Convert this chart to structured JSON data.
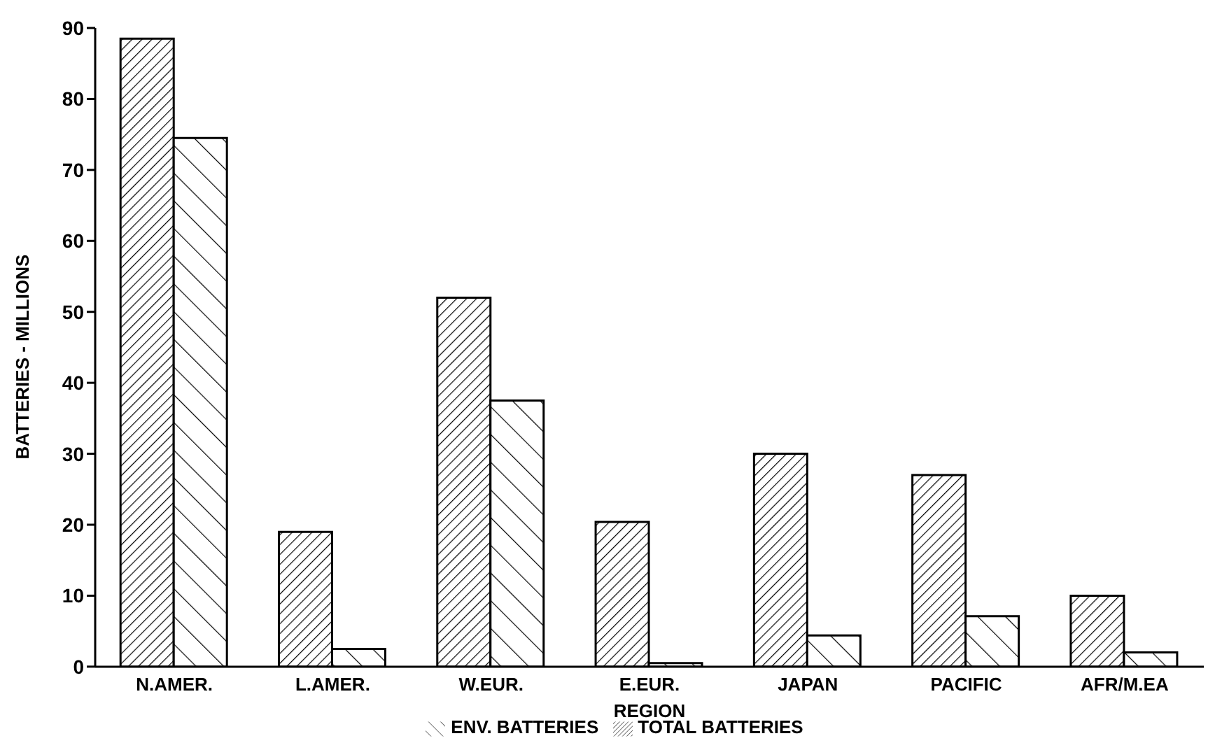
{
  "chart_data": {
    "type": "bar",
    "xlabel": "REGION",
    "ylabel": "BATTERIES - MILLIONS",
    "categories": [
      "N.AMER.",
      "L.AMER.",
      "W.EUR.",
      "E.EUR.",
      "JAPAN",
      "PACIFIC",
      "AFR/M.EA"
    ],
    "series": [
      {
        "name": "TOTAL BATTERIES",
        "color": "#000000",
        "values": [
          88.5,
          19,
          52,
          20.4,
          30,
          27,
          10
        ]
      },
      {
        "name": "ENV. BATTERIES",
        "color": "#000000",
        "values": [
          74.5,
          2.5,
          37.5,
          0.5,
          4.4,
          7.1,
          2
        ]
      }
    ],
    "ylim": [
      0,
      90
    ],
    "yticks": [
      0,
      10,
      20,
      30,
      40,
      50,
      60,
      70,
      80,
      90
    ],
    "grid": false,
    "legend": "bottom"
  }
}
